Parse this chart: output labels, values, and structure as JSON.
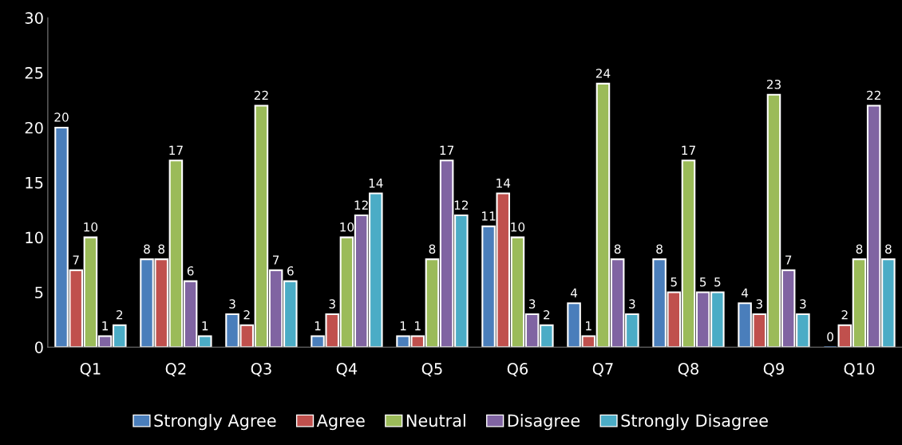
{
  "chart_data": {
    "type": "bar",
    "categories": [
      "Q1",
      "Q2",
      "Q3",
      "Q4",
      "Q5",
      "Q6",
      "Q7",
      "Q8",
      "Q9",
      "Q10"
    ],
    "series": [
      {
        "name": "Strongly Agree",
        "color": "#4a7ebb",
        "values": [
          20,
          8,
          3,
          1,
          1,
          11,
          4,
          8,
          4,
          0
        ]
      },
      {
        "name": "Agree",
        "color": "#c0504d",
        "values": [
          7,
          8,
          2,
          3,
          1,
          14,
          1,
          5,
          3,
          2
        ]
      },
      {
        "name": "Neutral",
        "color": "#9bbb59",
        "values": [
          10,
          17,
          22,
          10,
          8,
          10,
          24,
          17,
          23,
          8
        ]
      },
      {
        "name": "Disagree",
        "color": "#8064a2",
        "values": [
          1,
          6,
          7,
          12,
          17,
          3,
          8,
          5,
          7,
          22
        ]
      },
      {
        "name": "Strongly Disagree",
        "color": "#4bacc6",
        "values": [
          2,
          1,
          6,
          14,
          12,
          2,
          3,
          5,
          3,
          8
        ]
      }
    ],
    "ylim": [
      0,
      30
    ],
    "yticks": [
      0,
      5,
      10,
      15,
      20,
      25,
      30
    ],
    "grid": false,
    "legend": "bottom",
    "data_labels": true
  }
}
